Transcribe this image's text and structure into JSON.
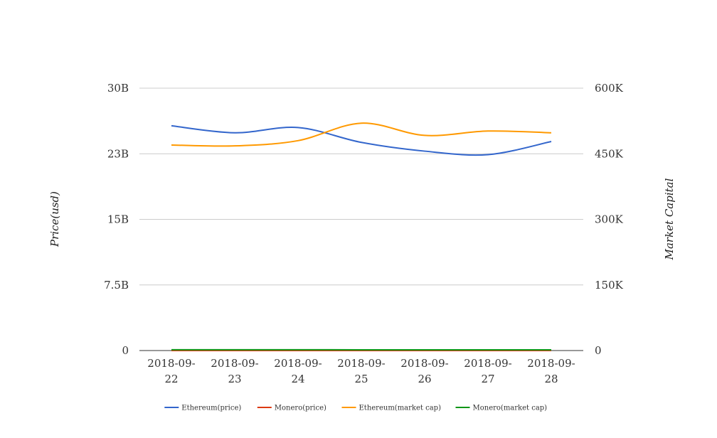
{
  "chart_data": {
    "type": "line",
    "categories": [
      "2018-09-22",
      "2018-09-23",
      "2018-09-24",
      "2018-09-25",
      "2018-09-26",
      "2018-09-27",
      "2018-09-28"
    ],
    "category_label_lines": [
      [
        "2018-09-",
        "22"
      ],
      [
        "2018-09-",
        "23"
      ],
      [
        "2018-09-",
        "24"
      ],
      [
        "2018-09-",
        "25"
      ],
      [
        "2018-09-",
        "26"
      ],
      [
        "2018-09-",
        "27"
      ],
      [
        "2018-09-",
        "28"
      ]
    ],
    "left_axis": {
      "title": "Price(usd)",
      "ticks": [
        0,
        7.5,
        15,
        22.5,
        30
      ],
      "tick_labels": [
        "0",
        "7.5B",
        "15B",
        "23B",
        "30B"
      ],
      "range": [
        0,
        30
      ],
      "unit": "B"
    },
    "right_axis": {
      "title": "Market Capital",
      "ticks": [
        0,
        150,
        300,
        450,
        600
      ],
      "tick_labels": [
        "0",
        "150K",
        "300K",
        "450K",
        "600K"
      ],
      "range": [
        0,
        600
      ],
      "unit": "K"
    },
    "grid": true,
    "legend_position": "bottom",
    "series": [
      {
        "name": "Ethereum(price)",
        "color": "#3366cc",
        "axis": "left",
        "values": [
          25.7,
          24.9,
          25.5,
          23.8,
          22.8,
          22.4,
          23.9
        ]
      },
      {
        "name": "Monero(price)",
        "color": "#dc3912",
        "axis": "left",
        "values": [
          0.0,
          0.0,
          0.0,
          0.0,
          0.0,
          0.0,
          0.0
        ]
      },
      {
        "name": "Ethereum(market cap)",
        "color": "#ff9900",
        "axis": "right",
        "values": [
          470,
          468,
          480,
          520,
          492,
          502,
          498
        ]
      },
      {
        "name": "Monero(market cap)",
        "color": "#109618",
        "axis": "right",
        "values": [
          1.8,
          1.8,
          1.8,
          1.7,
          1.7,
          1.7,
          1.7
        ]
      }
    ]
  }
}
